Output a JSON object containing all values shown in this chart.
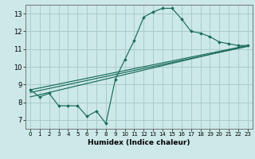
{
  "title": "",
  "xlabel": "Humidex (Indice chaleur)",
  "background_color": "#cce8e8",
  "grid_color": "#aacccc",
  "line_color": "#1a6b5a",
  "xlim": [
    -0.5,
    23.5
  ],
  "ylim": [
    6.5,
    13.5
  ],
  "xticks": [
    0,
    1,
    2,
    3,
    4,
    5,
    6,
    7,
    8,
    9,
    10,
    11,
    12,
    13,
    14,
    15,
    16,
    17,
    18,
    19,
    20,
    21,
    22,
    23
  ],
  "yticks": [
    7,
    8,
    9,
    10,
    11,
    12,
    13
  ],
  "main_series": {
    "x": [
      0,
      1,
      2,
      3,
      4,
      5,
      6,
      7,
      8,
      9,
      10,
      11,
      12,
      13,
      14,
      15,
      16,
      17,
      18,
      19,
      20,
      21,
      22,
      23
    ],
    "y": [
      8.7,
      8.3,
      8.5,
      7.8,
      7.8,
      7.8,
      7.2,
      7.5,
      6.8,
      9.3,
      10.4,
      11.5,
      12.8,
      13.1,
      13.3,
      13.3,
      12.7,
      12.0,
      11.9,
      11.7,
      11.4,
      11.3,
      11.2,
      11.2
    ]
  },
  "linear_series1": {
    "x": [
      0,
      23
    ],
    "y": [
      8.7,
      11.2
    ]
  },
  "linear_series2": {
    "x": [
      0,
      23
    ],
    "y": [
      8.55,
      11.15
    ]
  },
  "linear_series3": {
    "x": [
      0,
      23
    ],
    "y": [
      8.3,
      11.2
    ]
  }
}
